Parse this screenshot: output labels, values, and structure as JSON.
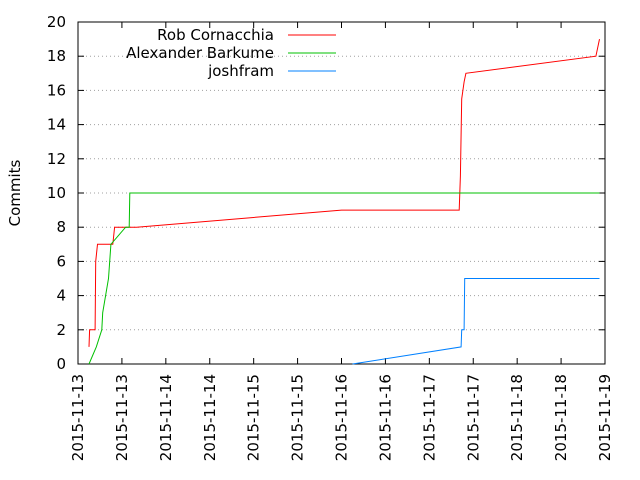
{
  "chart_data": {
    "type": "line",
    "xlabel": "",
    "ylabel": "Commits",
    "ylim": [
      0,
      20
    ],
    "xlim": [
      "2015-11-13T00:00",
      "2015-11-19T00:00"
    ],
    "yticks": [
      "0",
      "2",
      "4",
      "6",
      "8",
      "10",
      "12",
      "14",
      "16",
      "18",
      "20"
    ],
    "xticks": [
      "2015-11-13",
      "2015-11-13",
      "2015-11-14",
      "2015-11-14",
      "2015-11-15",
      "2015-11-15",
      "2015-11-16",
      "2015-11-16",
      "2015-11-17",
      "2015-11-17",
      "2015-11-18",
      "2015-11-18",
      "2015-11-19"
    ],
    "grid": true,
    "legend": "top-left",
    "series": [
      {
        "name": "Rob Cornacchia",
        "color": "#ff0000",
        "points": [
          [
            "2015-11-13T03:00",
            1
          ],
          [
            "2015-11-13T03:10",
            2
          ],
          [
            "2015-11-13T04:40",
            2
          ],
          [
            "2015-11-13T04:50",
            6
          ],
          [
            "2015-11-13T05:20",
            7
          ],
          [
            "2015-11-13T09:30",
            7
          ],
          [
            "2015-11-13T10:00",
            8
          ],
          [
            "2015-11-13T16:00",
            8
          ],
          [
            "2015-11-16T00:00",
            9
          ],
          [
            "2015-11-17T08:10",
            9
          ],
          [
            "2015-11-17T08:30",
            11
          ],
          [
            "2015-11-17T08:50",
            15.5
          ],
          [
            "2015-11-17T09:30",
            16.5
          ],
          [
            "2015-11-17T10:00",
            17
          ],
          [
            "2015-11-18T21:30",
            18
          ],
          [
            "2015-11-18T22:30",
            19
          ]
        ]
      },
      {
        "name": "Alexander Barkume",
        "color": "#00c000",
        "points": [
          [
            "2015-11-13T03:00",
            0
          ],
          [
            "2015-11-13T05:00",
            1
          ],
          [
            "2015-11-13T06:30",
            2
          ],
          [
            "2015-11-13T06:45",
            3
          ],
          [
            "2015-11-13T08:20",
            5
          ],
          [
            "2015-11-13T09:00",
            7
          ],
          [
            "2015-11-13T13:00",
            8
          ],
          [
            "2015-11-13T14:00",
            8
          ],
          [
            "2015-11-13T14:10",
            10
          ],
          [
            "2015-11-18T22:30",
            10
          ]
        ]
      },
      {
        "name": "joshfram",
        "color": "#0080ff",
        "points": [
          [
            "2015-11-16T03:00",
            0
          ],
          [
            "2015-11-17T08:40",
            1
          ],
          [
            "2015-11-17T08:50",
            2
          ],
          [
            "2015-11-17T09:30",
            2
          ],
          [
            "2015-11-17T09:40",
            5
          ],
          [
            "2015-11-18T22:30",
            5
          ]
        ]
      }
    ]
  }
}
